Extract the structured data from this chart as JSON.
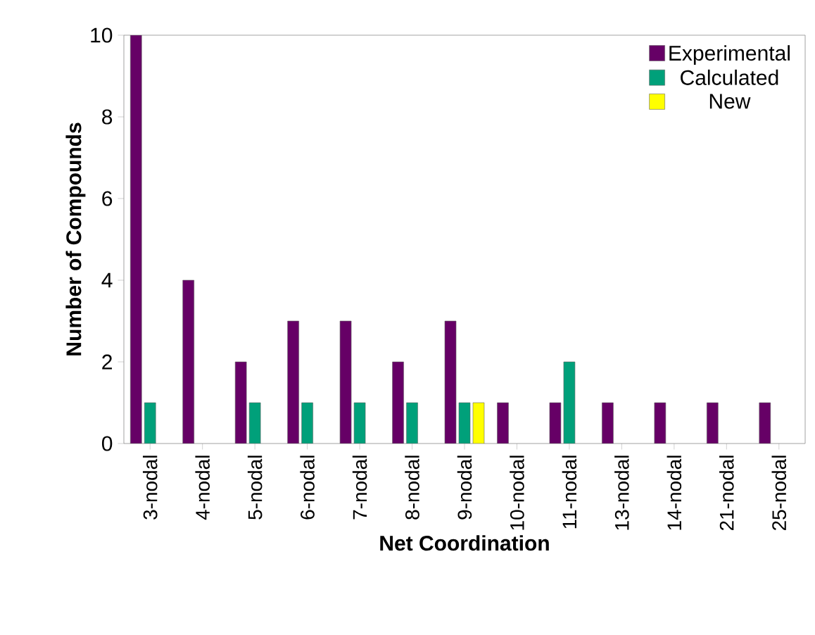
{
  "chart_data": {
    "type": "bar",
    "xlabel": "Net Coordination",
    "ylabel": "Number of Compounds",
    "categories": [
      "3-nodal",
      "4-nodal",
      "5-nodal",
      "6-nodal",
      "7-nodal",
      "8-nodal",
      "9-nodal",
      "10-nodal",
      "11-nodal",
      "13-nodal",
      "14-nodal",
      "21-nodal",
      "25-nodal"
    ],
    "series": [
      {
        "name": "Experimental",
        "color": "#660066",
        "values": [
          10,
          4,
          2,
          3,
          3,
          2,
          3,
          1,
          1,
          1,
          1,
          1,
          1
        ]
      },
      {
        "name": "Calculated",
        "color": "#00a07a",
        "values": [
          1,
          null,
          1,
          1,
          1,
          1,
          1,
          null,
          2,
          null,
          null,
          null,
          null
        ]
      },
      {
        "name": "New",
        "color": "#ffff00",
        "values": [
          null,
          null,
          null,
          null,
          null,
          null,
          1,
          null,
          null,
          null,
          null,
          null,
          null
        ]
      }
    ],
    "ylim": [
      0,
      10
    ],
    "yticks": [
      0,
      2,
      4,
      6,
      8,
      10
    ],
    "legend": "top right"
  }
}
